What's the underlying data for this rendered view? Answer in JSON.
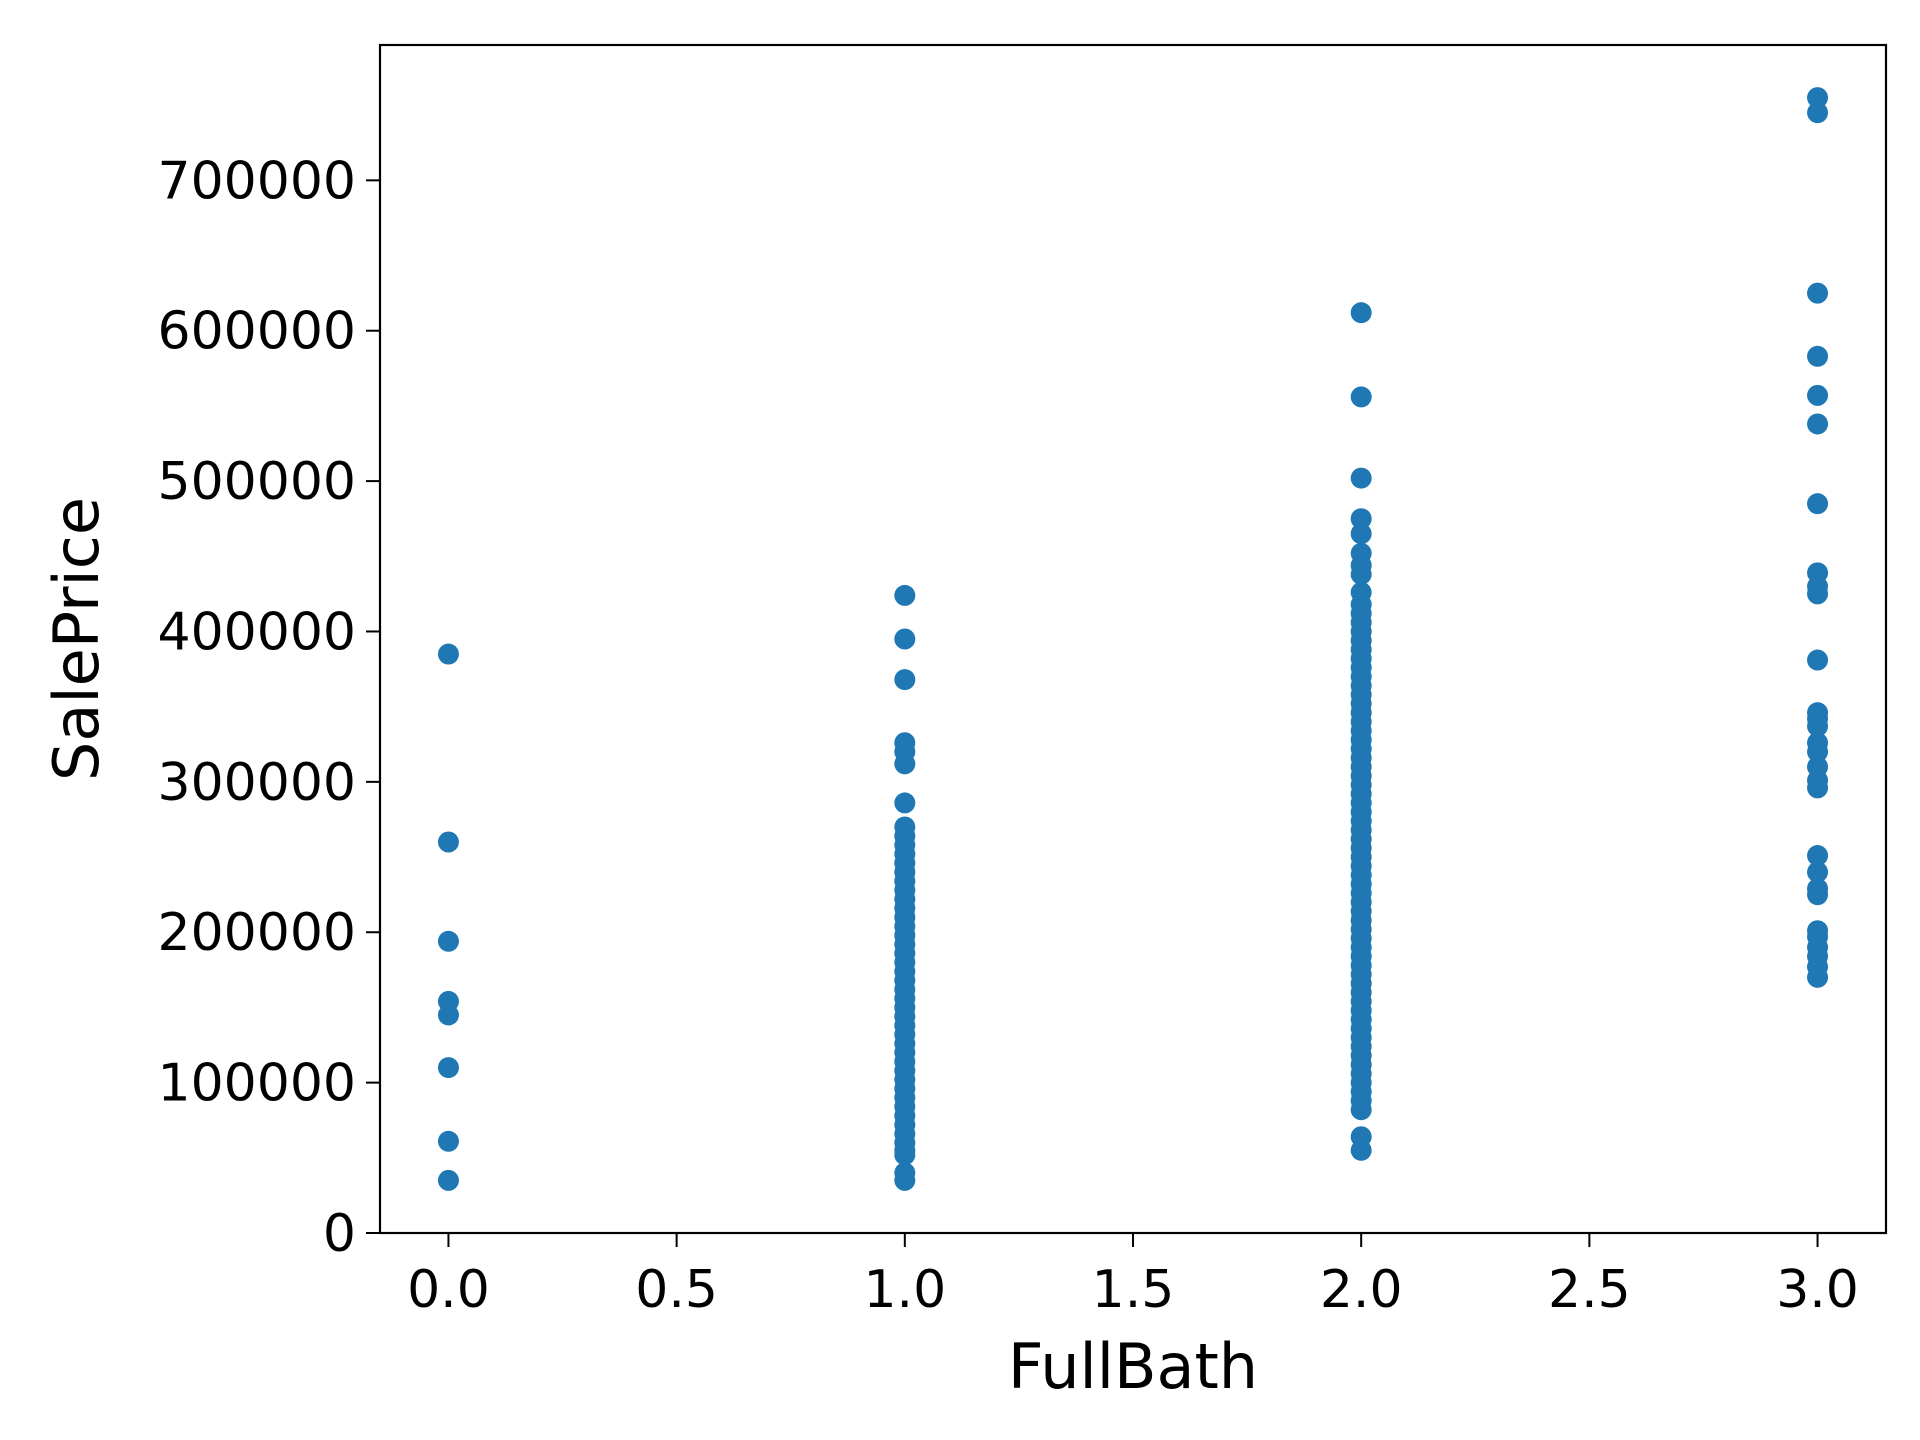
{
  "chart_data": {
    "type": "scatter",
    "xlabel": "FullBath",
    "ylabel": "SalePrice",
    "xlim": [
      -0.15,
      3.15
    ],
    "ylim": [
      0,
      790000
    ],
    "x_ticks": [
      0.0,
      0.5,
      1.0,
      1.5,
      2.0,
      2.5,
      3.0
    ],
    "x_tick_labels": [
      "0.0",
      "0.5",
      "1.0",
      "1.5",
      "2.0",
      "2.5",
      "3.0"
    ],
    "y_ticks": [
      0,
      100000,
      200000,
      300000,
      400000,
      500000,
      600000,
      700000
    ],
    "y_tick_labels": [
      "0",
      "100000",
      "200000",
      "300000",
      "400000",
      "500000",
      "600000",
      "700000"
    ],
    "grid": false,
    "marker_color": "#1f77b4",
    "series": [
      {
        "points": [
          [
            0,
            35000
          ],
          [
            0,
            61000
          ],
          [
            0,
            110000
          ],
          [
            0,
            145000
          ],
          [
            0,
            154000
          ],
          [
            0,
            194000
          ],
          [
            0,
            260000
          ],
          [
            0,
            385000
          ],
          [
            1,
            35000
          ],
          [
            1,
            40000
          ],
          [
            1,
            52000
          ],
          [
            1,
            55000
          ],
          [
            1,
            60000
          ],
          [
            1,
            66000
          ],
          [
            1,
            72000
          ],
          [
            1,
            78000
          ],
          [
            1,
            84000
          ],
          [
            1,
            90000
          ],
          [
            1,
            96000
          ],
          [
            1,
            102000
          ],
          [
            1,
            108000
          ],
          [
            1,
            114000
          ],
          [
            1,
            120000
          ],
          [
            1,
            126000
          ],
          [
            1,
            132000
          ],
          [
            1,
            138000
          ],
          [
            1,
            144000
          ],
          [
            1,
            150000
          ],
          [
            1,
            156000
          ],
          [
            1,
            162000
          ],
          [
            1,
            168000
          ],
          [
            1,
            174000
          ],
          [
            1,
            180000
          ],
          [
            1,
            186000
          ],
          [
            1,
            192000
          ],
          [
            1,
            198000
          ],
          [
            1,
            204000
          ],
          [
            1,
            210000
          ],
          [
            1,
            216000
          ],
          [
            1,
            222000
          ],
          [
            1,
            228000
          ],
          [
            1,
            234000
          ],
          [
            1,
            240000
          ],
          [
            1,
            246000
          ],
          [
            1,
            252000
          ],
          [
            1,
            258000
          ],
          [
            1,
            264000
          ],
          [
            1,
            270000
          ],
          [
            1,
            286000
          ],
          [
            1,
            312000
          ],
          [
            1,
            320000
          ],
          [
            1,
            326000
          ],
          [
            1,
            368000
          ],
          [
            1,
            395000
          ],
          [
            1,
            424000
          ],
          [
            2,
            55000
          ],
          [
            2,
            64000
          ],
          [
            2,
            82000
          ],
          [
            2,
            88000
          ],
          [
            2,
            94000
          ],
          [
            2,
            100000
          ],
          [
            2,
            106000
          ],
          [
            2,
            112000
          ],
          [
            2,
            118000
          ],
          [
            2,
            124000
          ],
          [
            2,
            130000
          ],
          [
            2,
            136000
          ],
          [
            2,
            142000
          ],
          [
            2,
            148000
          ],
          [
            2,
            154000
          ],
          [
            2,
            160000
          ],
          [
            2,
            166000
          ],
          [
            2,
            172000
          ],
          [
            2,
            178000
          ],
          [
            2,
            184000
          ],
          [
            2,
            190000
          ],
          [
            2,
            196000
          ],
          [
            2,
            202000
          ],
          [
            2,
            208000
          ],
          [
            2,
            214000
          ],
          [
            2,
            220000
          ],
          [
            2,
            226000
          ],
          [
            2,
            232000
          ],
          [
            2,
            238000
          ],
          [
            2,
            244000
          ],
          [
            2,
            250000
          ],
          [
            2,
            256000
          ],
          [
            2,
            262000
          ],
          [
            2,
            268000
          ],
          [
            2,
            274000
          ],
          [
            2,
            280000
          ],
          [
            2,
            286000
          ],
          [
            2,
            292000
          ],
          [
            2,
            298000
          ],
          [
            2,
            304000
          ],
          [
            2,
            310000
          ],
          [
            2,
            316000
          ],
          [
            2,
            322000
          ],
          [
            2,
            328000
          ],
          [
            2,
            334000
          ],
          [
            2,
            340000
          ],
          [
            2,
            346000
          ],
          [
            2,
            352000
          ],
          [
            2,
            358000
          ],
          [
            2,
            364000
          ],
          [
            2,
            370000
          ],
          [
            2,
            376000
          ],
          [
            2,
            382000
          ],
          [
            2,
            388000
          ],
          [
            2,
            394000
          ],
          [
            2,
            400000
          ],
          [
            2,
            406000
          ],
          [
            2,
            412000
          ],
          [
            2,
            418000
          ],
          [
            2,
            426000
          ],
          [
            2,
            438000
          ],
          [
            2,
            444000
          ],
          [
            2,
            452000
          ],
          [
            2,
            465000
          ],
          [
            2,
            475000
          ],
          [
            2,
            502000
          ],
          [
            2,
            556000
          ],
          [
            2,
            612000
          ],
          [
            3,
            170000
          ],
          [
            3,
            177000
          ],
          [
            3,
            184000
          ],
          [
            3,
            190000
          ],
          [
            3,
            197000
          ],
          [
            3,
            201000
          ],
          [
            3,
            225000
          ],
          [
            3,
            229000
          ],
          [
            3,
            240000
          ],
          [
            3,
            251000
          ],
          [
            3,
            296000
          ],
          [
            3,
            301000
          ],
          [
            3,
            310000
          ],
          [
            3,
            320000
          ],
          [
            3,
            326000
          ],
          [
            3,
            337000
          ],
          [
            3,
            342000
          ],
          [
            3,
            346000
          ],
          [
            3,
            381000
          ],
          [
            3,
            425000
          ],
          [
            3,
            430000
          ],
          [
            3,
            439000
          ],
          [
            3,
            485000
          ],
          [
            3,
            538000
          ],
          [
            3,
            557000
          ],
          [
            3,
            583000
          ],
          [
            3,
            625000
          ],
          [
            3,
            745000
          ],
          [
            3,
            755000
          ]
        ]
      }
    ]
  }
}
